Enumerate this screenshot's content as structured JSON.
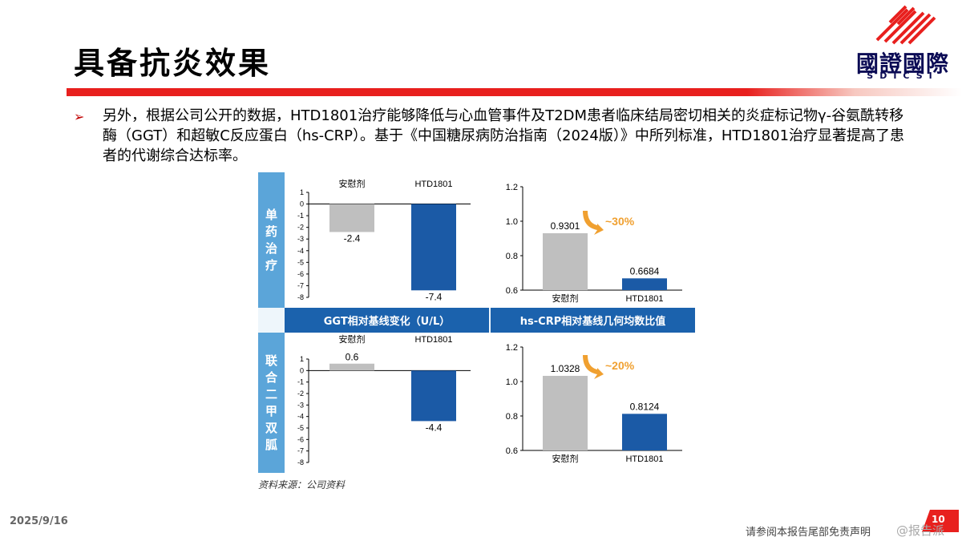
{
  "header": {
    "title": "具备抗炎效果"
  },
  "logo": {
    "cn": "國證國際",
    "en": "SDICSI"
  },
  "body": {
    "paragraph": "另外，根据公司公开的数据，HTD1801治疗能够降低与心血管事件及T2DM患者临床结局密切相关的炎症标记物γ-谷氨酰转移酶（GGT）和超敏C反应蛋白（hs-CRP）。基于《中国糖尿病防治指南（2024版）》中所列标准，HTD1801治疗显著提高了患者的代谢综合达标率。"
  },
  "figure": {
    "row_labels": [
      "单药治疗",
      "联合二甲双胍"
    ],
    "band_left": "GGT相对基线变化（U/L）",
    "band_right": "hs-CRP相对基线几何均数比值",
    "source": "资料来源：公司资料"
  },
  "chart_data": [
    {
      "id": "ggt_mono",
      "type": "bar",
      "categories": [
        "安慰剂",
        "HTD1801"
      ],
      "values": [
        -2.4,
        -7.4
      ],
      "labels": [
        "-2.4",
        "-7.4"
      ],
      "category_position": "top",
      "ylim": [
        -8,
        1
      ],
      "yticks": [
        "1",
        "0",
        "-1",
        "-2",
        "-3",
        "-4",
        "-5",
        "-6",
        "-7",
        "-8"
      ],
      "colors": [
        "#bfbfbf",
        "#1b5aa6"
      ]
    },
    {
      "id": "crp_mono",
      "type": "bar",
      "categories": [
        "安慰剂",
        "HTD1801"
      ],
      "values": [
        0.9301,
        0.6684
      ],
      "labels": [
        "0.9301",
        "0.6684"
      ],
      "category_position": "bottom",
      "ylim": [
        0.6,
        1.2
      ],
      "yticks": [
        "1.2",
        "1.0",
        "0.8",
        "0.6"
      ],
      "annotation": "~30%",
      "colors": [
        "#bfbfbf",
        "#1b5aa6"
      ]
    },
    {
      "id": "ggt_combo",
      "type": "bar",
      "categories": [
        "安慰剂",
        "HTD1801"
      ],
      "values": [
        0.6,
        -4.4
      ],
      "labels": [
        "0.6",
        "-4.4"
      ],
      "category_position": "top",
      "ylim": [
        -8,
        1
      ],
      "yticks": [
        "1",
        "0",
        "-1",
        "-2",
        "-3",
        "-4",
        "-5",
        "-6",
        "-7",
        "-8"
      ],
      "colors": [
        "#bfbfbf",
        "#1b5aa6"
      ]
    },
    {
      "id": "crp_combo",
      "type": "bar",
      "categories": [
        "安慰剂",
        "HTD1801"
      ],
      "values": [
        1.0328,
        0.8124
      ],
      "labels": [
        "1.0328",
        "0.8124"
      ],
      "category_position": "bottom",
      "ylim": [
        0.6,
        1.2
      ],
      "yticks": [
        "1.2",
        "1.0",
        "0.8",
        "0.6"
      ],
      "annotation": "~20%",
      "colors": [
        "#bfbfbf",
        "#1b5aa6"
      ]
    }
  ],
  "footer": {
    "date": "2025/9/16",
    "page": "10",
    "disclaimer": "请参阅本报告尾部免责声明",
    "watermark": "@报告派"
  }
}
